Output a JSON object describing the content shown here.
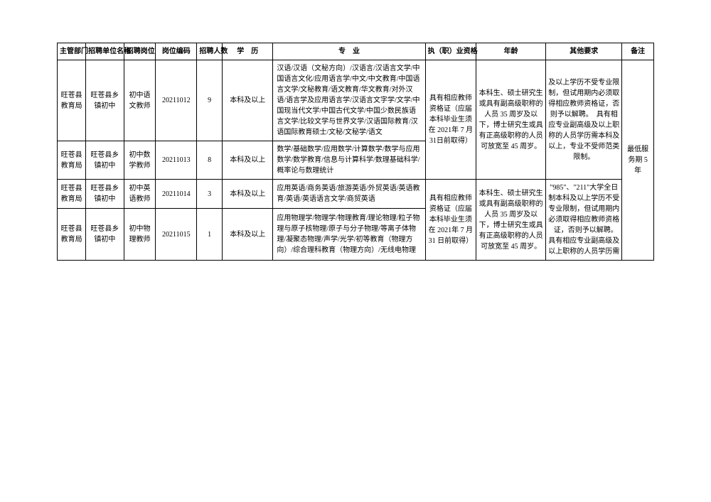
{
  "headers": {
    "dept": "主管部门",
    "unit": "招聘单位名称",
    "pos": "招聘岗位",
    "code": "岗位编码",
    "count": "招聘人数",
    "edu": "学　历",
    "major": "专　业",
    "qual": "执（职）业资格",
    "age": "年龄",
    "other": "其他要求",
    "note": "备注"
  },
  "rows": [
    {
      "dept": "旺苍县教育局",
      "unit": "旺苍县乡镇初中",
      "pos": "初中语文教师",
      "code": "20211012",
      "count": "9",
      "edu": "本科及以上",
      "major": "汉语/汉语（文秘方向）/汉语言/汉语言文学/中国语言文化/应用语言学/中文/中文教育/中国语言文学/文秘教育/语文教育/华文教育/对外汉语/语言学及应用语言学/汉语言文字学/文学/中国现当代文学/中国古代文学/中国少数民族语言文学/比较文学与世界文学/汉语国际教育/汉语国际教育硕士/文秘/文秘学/语文"
    },
    {
      "dept": "旺苍县教育局",
      "unit": "旺苍县乡镇初中",
      "pos": "初中数学教师",
      "code": "20211013",
      "count": "8",
      "edu": "本科及以上",
      "major": "数学/基础数学/应用数学/计算数学/数学与应用数学/数学教育/信息与计算科学/数理基础科学/概率论与数理统计"
    },
    {
      "dept": "旺苍县教育局",
      "unit": "旺苍县乡镇初中",
      "pos": "初中英语教师",
      "code": "20211014",
      "count": "3",
      "edu": "本科及以上",
      "major": "应用英语/商务英语/旅游英语/外贸英语/英语教育/英语/英语语言文学/商贸英语"
    },
    {
      "dept": "旺苍县教育局",
      "unit": "旺苍县乡镇初中",
      "pos": "初中物理教师",
      "code": "20211015",
      "count": "1",
      "edu": "本科及以上",
      "major": "应用物理学/物理学/物理教育/理论物理/粒子物理与原子核物理/原子与分子物理/等离子体物理/凝聚态物理/声学/光学/初等教育（物理方向）/综合理科教育（物理方向）/无线电物理"
    }
  ],
  "merged": {
    "qual1": "具有相应教师资格证（应届本科毕业生须在 2021年 7 月 31日前取得）",
    "age1": "本科生、硕士研究生或具有副高级职称的人员 35 周岁及以下，博士研究生或具有正高级职称的人员可放宽至 45 周岁。",
    "other1": "及以上学历不受专业限制，但试用期内必须取得相应教师资格证，否则予以解聘。　具有相应专业副高级及以上职称的人员学历需本科及以上，专业不受师范类限制。",
    "qual2": "具有相应教师资格证（应届本科毕业生须在 2021年 7 月 31 日前取得）",
    "age2": "本科生、硕士研究生或具有副高级职称的人员 35 周岁及以下，博士研究生或具有正高级职称的人员可放宽至 45 周岁。",
    "other2": "\"985\"、\"211\"大学全日制本科及以上学历不受专业限制，但试用期内必须取得相应教师资格证，否则予以解聘。　具有相应专业副高级及以上职称的人员学历需",
    "note": "最低服务期 5 年"
  }
}
